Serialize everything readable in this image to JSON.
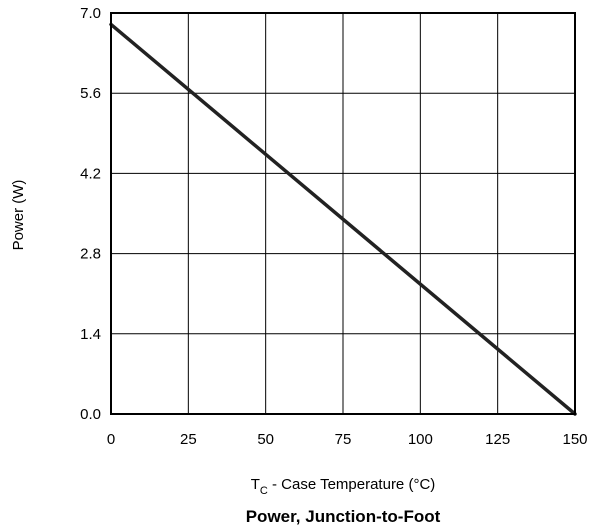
{
  "chart_data": {
    "type": "line",
    "title": "Power, Junction-to-Foot",
    "xlabel": {
      "main": "T",
      "subscript": "C",
      "rest": " - Case Temperature (°C)"
    },
    "ylabel": "Power (W)",
    "xlim": [
      0,
      150
    ],
    "ylim": [
      0,
      7
    ],
    "x_ticks": [
      0,
      25,
      50,
      75,
      100,
      125,
      150
    ],
    "x_tick_labels": [
      "0",
      "25",
      "50",
      "75",
      "100",
      "125",
      "150"
    ],
    "y_ticks": [
      0,
      1.4,
      2.8,
      4.2,
      5.6,
      7.0
    ],
    "y_tick_labels": [
      "0.0",
      "1.4",
      "2.8",
      "4.2",
      "5.6",
      "7.0"
    ],
    "grid": true,
    "series": [
      {
        "x": [
          0,
          150
        ],
        "y": [
          6.8,
          0
        ],
        "color": "#222222"
      }
    ]
  }
}
